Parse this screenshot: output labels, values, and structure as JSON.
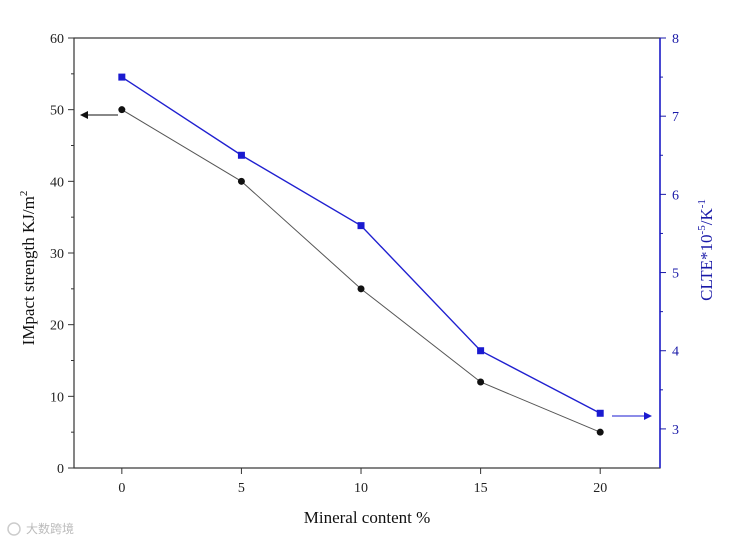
{
  "chart_data": {
    "type": "line",
    "x": [
      0,
      5,
      10,
      15,
      20
    ],
    "xlabel": "Mineral content %",
    "xlim": [
      -2,
      22.5
    ],
    "xticks": [
      "0",
      "5",
      "10",
      "15",
      "20"
    ],
    "series": [
      {
        "axis": "left",
        "color": "#555555",
        "marker_color": "#111111",
        "values": [
          50,
          40,
          25,
          12,
          5
        ]
      },
      {
        "axis": "right",
        "color": "#2020d0",
        "marker_color": "#1a1ad0",
        "values": [
          7.5,
          6.5,
          5.6,
          4.0,
          3.2
        ]
      }
    ],
    "y_left": {
      "label_main": "IMpact strength KJ/m",
      "label_sup": "2",
      "ylim": [
        0,
        60
      ],
      "ticks": [
        "0",
        "10",
        "20",
        "30",
        "40",
        "50",
        "60"
      ]
    },
    "y_right": {
      "label_main": "CLTE*10",
      "label_sup1": "-5",
      "label_mid": "/K",
      "label_sup2": "-1",
      "ylim": [
        2.5,
        8
      ],
      "ticks": [
        "3",
        "4",
        "5",
        "6",
        "7",
        "8"
      ],
      "color": "#1a1aa8"
    },
    "grid": false,
    "legend": "none"
  },
  "watermark": "大数跨境"
}
